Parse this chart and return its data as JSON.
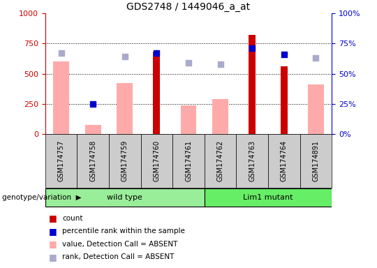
{
  "title": "GDS2748 / 1449046_a_at",
  "samples": [
    "GSM174757",
    "GSM174758",
    "GSM174759",
    "GSM174760",
    "GSM174761",
    "GSM174762",
    "GSM174763",
    "GSM174764",
    "GSM174891"
  ],
  "groups": {
    "wild type": [
      0,
      1,
      2,
      3,
      4
    ],
    "Lim1 mutant": [
      5,
      6,
      7,
      8
    ]
  },
  "count_values": [
    0,
    0,
    0,
    680,
    0,
    0,
    820,
    560,
    0
  ],
  "percentile_rank": [
    null,
    25,
    null,
    67,
    null,
    null,
    71,
    66,
    null
  ],
  "value_absent": [
    600,
    75,
    420,
    null,
    240,
    290,
    null,
    null,
    410
  ],
  "rank_absent": [
    67,
    null,
    64,
    null,
    59,
    58,
    null,
    null,
    63
  ],
  "ylim_left": [
    0,
    1000
  ],
  "ylim_right": [
    0,
    100
  ],
  "yticks_left": [
    0,
    250,
    500,
    750,
    1000
  ],
  "yticks_right": [
    0,
    25,
    50,
    75,
    100
  ],
  "count_color": "#cc0000",
  "percentile_color": "#0000cc",
  "value_absent_color": "#ffaaaa",
  "rank_absent_color": "#aaaacc",
  "group_color_wt": "#99ee99",
  "group_color_lim1": "#66ee66",
  "left_axis_color": "#cc0000",
  "right_axis_color": "#0000cc",
  "gray_bg": "#cccccc",
  "grid_dotted": [
    250,
    500,
    750
  ]
}
